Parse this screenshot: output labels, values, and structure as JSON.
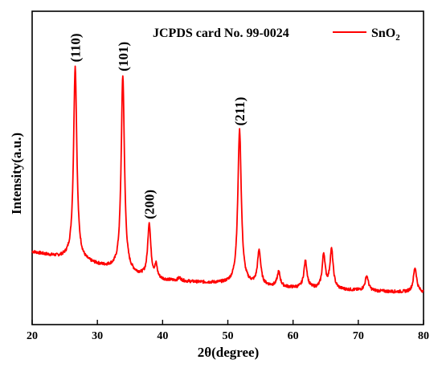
{
  "chart_data": {
    "type": "line",
    "title": "",
    "xlabel": "2θ(degree)",
    "ylabel": "Intensity(a.u.)",
    "xlim": [
      20,
      80
    ],
    "xticks": [
      20,
      30,
      40,
      50,
      60,
      70,
      80
    ],
    "yticks_shown": false,
    "grid": false,
    "annotation": "JCPDS card No. 99-0024",
    "legend": {
      "placement": "top-right",
      "entries": [
        {
          "base": "SnO",
          "subscript": "2",
          "color": "#ff0000"
        }
      ]
    },
    "series": [
      {
        "color": "#ff0000",
        "baseline": [
          {
            "x": 20,
            "y": 0.166
          },
          {
            "x": 22,
            "y": 0.155
          },
          {
            "x": 24,
            "y": 0.144
          },
          {
            "x": 25.5,
            "y": 0.14
          },
          {
            "x": 31,
            "y": 0.105
          },
          {
            "x": 32,
            "y": 0.1
          },
          {
            "x": 36,
            "y": 0.07
          },
          {
            "x": 40,
            "y": 0.05
          },
          {
            "x": 45,
            "y": 0.042
          },
          {
            "x": 50,
            "y": 0.036
          },
          {
            "x": 55,
            "y": 0.027
          },
          {
            "x": 60,
            "y": 0.018
          },
          {
            "x": 65,
            "y": 0.012
          },
          {
            "x": 70,
            "y": 0.008
          },
          {
            "x": 75,
            "y": 0.003
          },
          {
            "x": 80,
            "y": 0.0
          }
        ],
        "peaks": [
          {
            "x": 26.6,
            "height": 0.79,
            "width": 0.3,
            "label": "(110)"
          },
          {
            "x": 33.9,
            "height": 0.8,
            "width": 0.3,
            "label": "(101)"
          },
          {
            "x": 37.95,
            "height": 0.22,
            "width": 0.28,
            "label": "(200)"
          },
          {
            "x": 39.0,
            "height": 0.05,
            "width": 0.22,
            "label": ""
          },
          {
            "x": 42.6,
            "height": 0.012,
            "width": 0.3,
            "label": ""
          },
          {
            "x": 51.8,
            "height": 0.63,
            "width": 0.32,
            "label": "(211)"
          },
          {
            "x": 54.8,
            "height": 0.14,
            "width": 0.3,
            "label": ""
          },
          {
            "x": 57.8,
            "height": 0.06,
            "width": 0.28,
            "label": ""
          },
          {
            "x": 61.9,
            "height": 0.11,
            "width": 0.3,
            "label": ""
          },
          {
            "x": 64.7,
            "height": 0.14,
            "width": 0.28,
            "label": ""
          },
          {
            "x": 65.9,
            "height": 0.16,
            "width": 0.3,
            "label": ""
          },
          {
            "x": 71.3,
            "height": 0.06,
            "width": 0.3,
            "label": ""
          },
          {
            "x": 78.7,
            "height": 0.1,
            "width": 0.3,
            "label": ""
          }
        ]
      }
    ]
  }
}
